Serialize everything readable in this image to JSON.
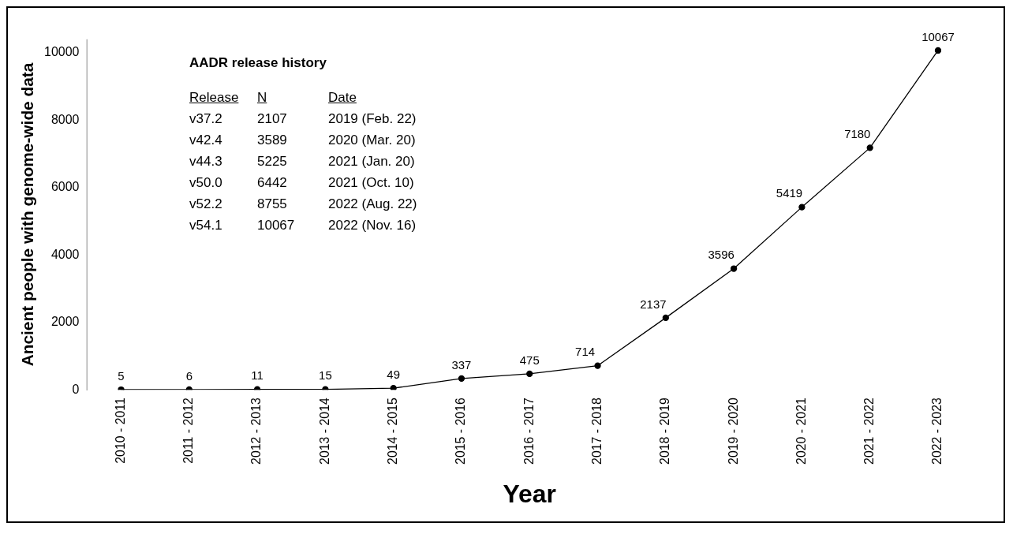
{
  "chart_data": {
    "type": "line",
    "xlabel": "Year",
    "ylabel": "Ancient people with genome-wide data",
    "categories": [
      "2010 - 2011",
      "2011 - 2012",
      "2012 - 2013",
      "2013 - 2014",
      "2014 - 2015",
      "2015 - 2016",
      "2016 - 2017",
      "2017 - 2018",
      "2018 - 2019",
      "2019 - 2020",
      "2020 - 2021",
      "2021 - 2022",
      "2022 - 2023"
    ],
    "series": [
      {
        "color": "#000000",
        "values": [
          5,
          6,
          11,
          15,
          49,
          337,
          475,
          714,
          2137,
          3596,
          5419,
          7180,
          10067
        ]
      }
    ],
    "ylim": [
      0,
      10400
    ],
    "yticks": [
      0,
      2000,
      4000,
      6000,
      8000,
      10000
    ],
    "grid": false,
    "legend": false,
    "marker": "circle",
    "line_style": "solid",
    "data_labels": true,
    "annotations": [
      "AADR release history",
      "Release",
      "N",
      "Date",
      "v37.2",
      "2107",
      "2019 (Feb. 22)",
      "v42.4",
      "3589",
      "2020 (Mar. 20)",
      "v44.3",
      "5225",
      "2021 (Jan. 20)",
      "v50.0",
      "6442",
      "2021 (Oct. 10)",
      "v52.2",
      "8755",
      "2022 (Aug. 22)",
      "v54.1",
      "10067",
      "2022 (Nov. 16)"
    ]
  }
}
